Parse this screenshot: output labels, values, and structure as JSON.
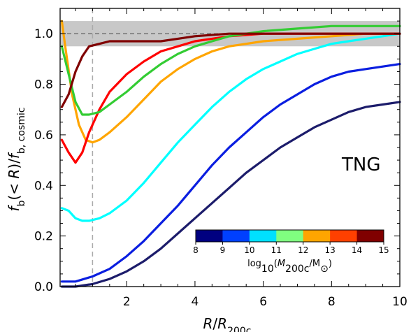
{
  "chart_data": {
    "type": "line",
    "xlabel": "R/R200c",
    "ylabel": "fb(<R)/fb,cosmic",
    "xlim": [
      0.05,
      10.0
    ],
    "ylim": [
      0.0,
      1.1
    ],
    "xticks": [
      2,
      4,
      6,
      8,
      10
    ],
    "xtick_labels": [
      "2",
      "4",
      "6",
      "8",
      "10"
    ],
    "yticks": [
      0.0,
      0.2,
      0.4,
      0.6,
      0.8,
      1.0
    ],
    "ytick_labels": [
      "0.0",
      "0.2",
      "0.4",
      "0.6",
      "0.8",
      "1.0"
    ],
    "grid": false,
    "annotation": "TNG",
    "shaded_band": [
      0.95,
      1.05
    ],
    "reference_hline": 1.0,
    "reference_vline": 1.0,
    "colorbar": {
      "label": "log10(M200c/M⊙)",
      "ticks": [
        "8",
        "9",
        "10",
        "11",
        "12",
        "13",
        "14",
        "15"
      ],
      "colors": [
        "#000080",
        "#0040ff",
        "#00e0ff",
        "#80ff80",
        "#ffa500",
        "#ff4000",
        "#800000"
      ]
    },
    "series": [
      {
        "color": "#1c1c6b",
        "x": [
          0.1,
          0.5,
          1.0,
          1.5,
          2.0,
          2.5,
          3.0,
          3.5,
          4.0,
          4.5,
          5.0,
          5.5,
          6.0,
          6.5,
          7.0,
          7.5,
          8.0,
          8.5,
          9.0,
          9.5,
          10.0
        ],
        "y": [
          0.0,
          0.0,
          0.01,
          0.03,
          0.06,
          0.1,
          0.15,
          0.21,
          0.27,
          0.33,
          0.39,
          0.45,
          0.5,
          0.55,
          0.59,
          0.63,
          0.66,
          0.69,
          0.71,
          0.72,
          0.73
        ]
      },
      {
        "color": "#0a1ee0",
        "x": [
          0.1,
          0.5,
          1.0,
          1.5,
          2.0,
          2.5,
          3.0,
          3.5,
          4.0,
          4.5,
          5.0,
          5.5,
          6.0,
          6.5,
          7.0,
          7.5,
          8.0,
          8.5,
          9.0,
          9.5,
          10.0
        ],
        "y": [
          0.02,
          0.02,
          0.04,
          0.07,
          0.12,
          0.18,
          0.25,
          0.32,
          0.4,
          0.48,
          0.55,
          0.61,
          0.67,
          0.72,
          0.76,
          0.8,
          0.83,
          0.85,
          0.86,
          0.87,
          0.88
        ]
      },
      {
        "color": "#00ffff",
        "x": [
          0.1,
          0.3,
          0.5,
          0.7,
          0.9,
          1.2,
          1.5,
          2.0,
          2.5,
          3.0,
          3.5,
          4.0,
          4.5,
          5.0,
          5.5,
          6.0,
          6.5,
          7.0,
          7.5,
          8.0,
          8.5,
          9.0,
          9.5,
          10.0
        ],
        "y": [
          0.31,
          0.3,
          0.27,
          0.26,
          0.26,
          0.27,
          0.29,
          0.34,
          0.41,
          0.49,
          0.57,
          0.64,
          0.71,
          0.77,
          0.82,
          0.86,
          0.89,
          0.92,
          0.94,
          0.96,
          0.97,
          0.98,
          0.99,
          1.0
        ]
      },
      {
        "color": "#ffa500",
        "x": [
          0.1,
          0.2,
          0.4,
          0.6,
          0.8,
          1.0,
          1.2,
          1.5,
          2.0,
          2.5,
          3.0,
          3.5,
          4.0,
          4.5,
          5.0,
          5.5,
          6.0,
          7.0,
          8.0,
          9.0,
          10.0
        ],
        "y": [
          1.05,
          0.95,
          0.76,
          0.64,
          0.58,
          0.57,
          0.58,
          0.61,
          0.67,
          0.74,
          0.81,
          0.86,
          0.9,
          0.93,
          0.95,
          0.96,
          0.97,
          0.98,
          0.99,
          1.0,
          1.0
        ]
      },
      {
        "color": "#ff0000",
        "x": [
          0.1,
          0.3,
          0.5,
          0.7,
          0.9,
          1.2,
          1.5,
          2.0,
          2.5,
          3.0,
          3.5,
          4.0,
          4.5,
          5.0,
          5.5,
          6.0,
          7.0,
          8.0,
          9.0,
          10.0
        ],
        "y": [
          0.58,
          0.53,
          0.49,
          0.53,
          0.61,
          0.7,
          0.77,
          0.84,
          0.89,
          0.93,
          0.95,
          0.97,
          0.98,
          0.99,
          0.995,
          1.0,
          1.0,
          1.0,
          1.0,
          1.0
        ]
      },
      {
        "color": "#33cc33",
        "x": [
          0.1,
          0.3,
          0.5,
          0.7,
          0.9,
          1.2,
          1.5,
          2.0,
          2.5,
          3.0,
          3.5,
          4.0,
          4.5,
          5.0,
          5.5,
          6.0,
          7.0,
          8.0,
          9.0,
          10.0
        ],
        "y": [
          0.95,
          0.84,
          0.73,
          0.68,
          0.68,
          0.69,
          0.72,
          0.77,
          0.83,
          0.88,
          0.92,
          0.95,
          0.97,
          0.99,
          1.0,
          1.01,
          1.02,
          1.03,
          1.03,
          1.03
        ]
      },
      {
        "color": "#800000",
        "x": [
          0.1,
          0.3,
          0.5,
          0.7,
          0.9,
          1.2,
          1.5,
          2.0,
          2.5,
          3.0,
          3.5,
          4.0,
          5.0,
          6.0,
          7.0,
          8.0,
          9.0,
          10.0
        ],
        "y": [
          0.71,
          0.76,
          0.85,
          0.91,
          0.95,
          0.96,
          0.97,
          0.97,
          0.97,
          0.97,
          0.98,
          0.99,
          1.0,
          1.0,
          1.0,
          1.0,
          1.0,
          1.0
        ]
      }
    ]
  }
}
